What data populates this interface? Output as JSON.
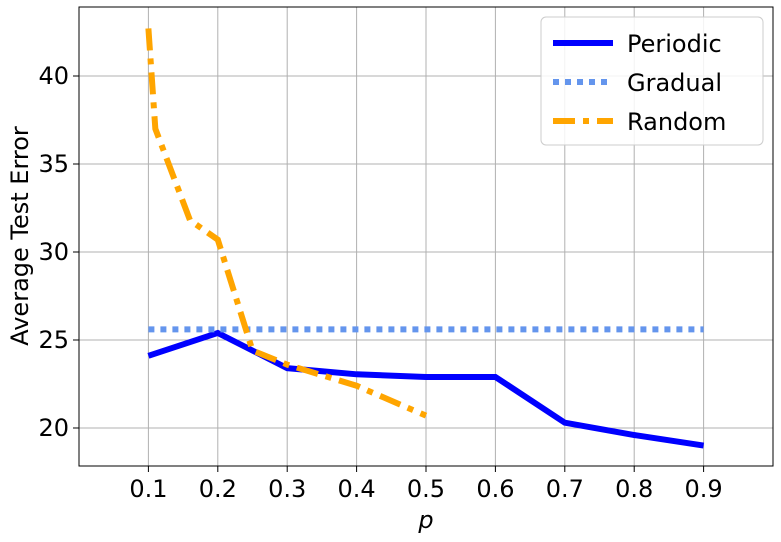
{
  "chart_data": {
    "type": "line",
    "xlabel": "p",
    "ylabel": "Average Test Error",
    "xlim": [
      0,
      1
    ],
    "ylim": [
      17.84,
      43.92
    ],
    "xticks": [
      0.1,
      0.2,
      0.3,
      0.4,
      0.5,
      0.6,
      0.7,
      0.8,
      0.9
    ],
    "yticks": [
      20,
      25,
      30,
      35,
      40
    ],
    "grid": true,
    "legend": "upper right",
    "series": [
      {
        "name": "Periodic",
        "color": "#0000ff",
        "dash": "solid",
        "x": [
          0.1,
          0.2,
          0.3,
          0.4,
          0.5,
          0.6,
          0.7,
          0.8,
          0.9
        ],
        "values": [
          24.1,
          25.4,
          23.4,
          23.05,
          22.9,
          22.9,
          20.3,
          19.6,
          19.0
        ]
      },
      {
        "name": "Gradual",
        "color": "#6495ed",
        "dash": "dotted",
        "x": [
          0.1,
          0.2,
          0.3,
          0.4,
          0.5,
          0.6,
          0.7,
          0.8,
          0.9
        ],
        "values": [
          25.6,
          25.6,
          25.6,
          25.6,
          25.6,
          25.6,
          25.6,
          25.6,
          25.6
        ]
      },
      {
        "name": "Random",
        "color": "#ffa500",
        "dash": "dashdot",
        "x": [
          0.1,
          0.11,
          0.16,
          0.2,
          0.25,
          0.3,
          0.4,
          0.5
        ],
        "values": [
          42.7,
          37.0,
          31.8,
          30.7,
          24.4,
          23.6,
          22.4,
          20.7
        ]
      }
    ]
  }
}
